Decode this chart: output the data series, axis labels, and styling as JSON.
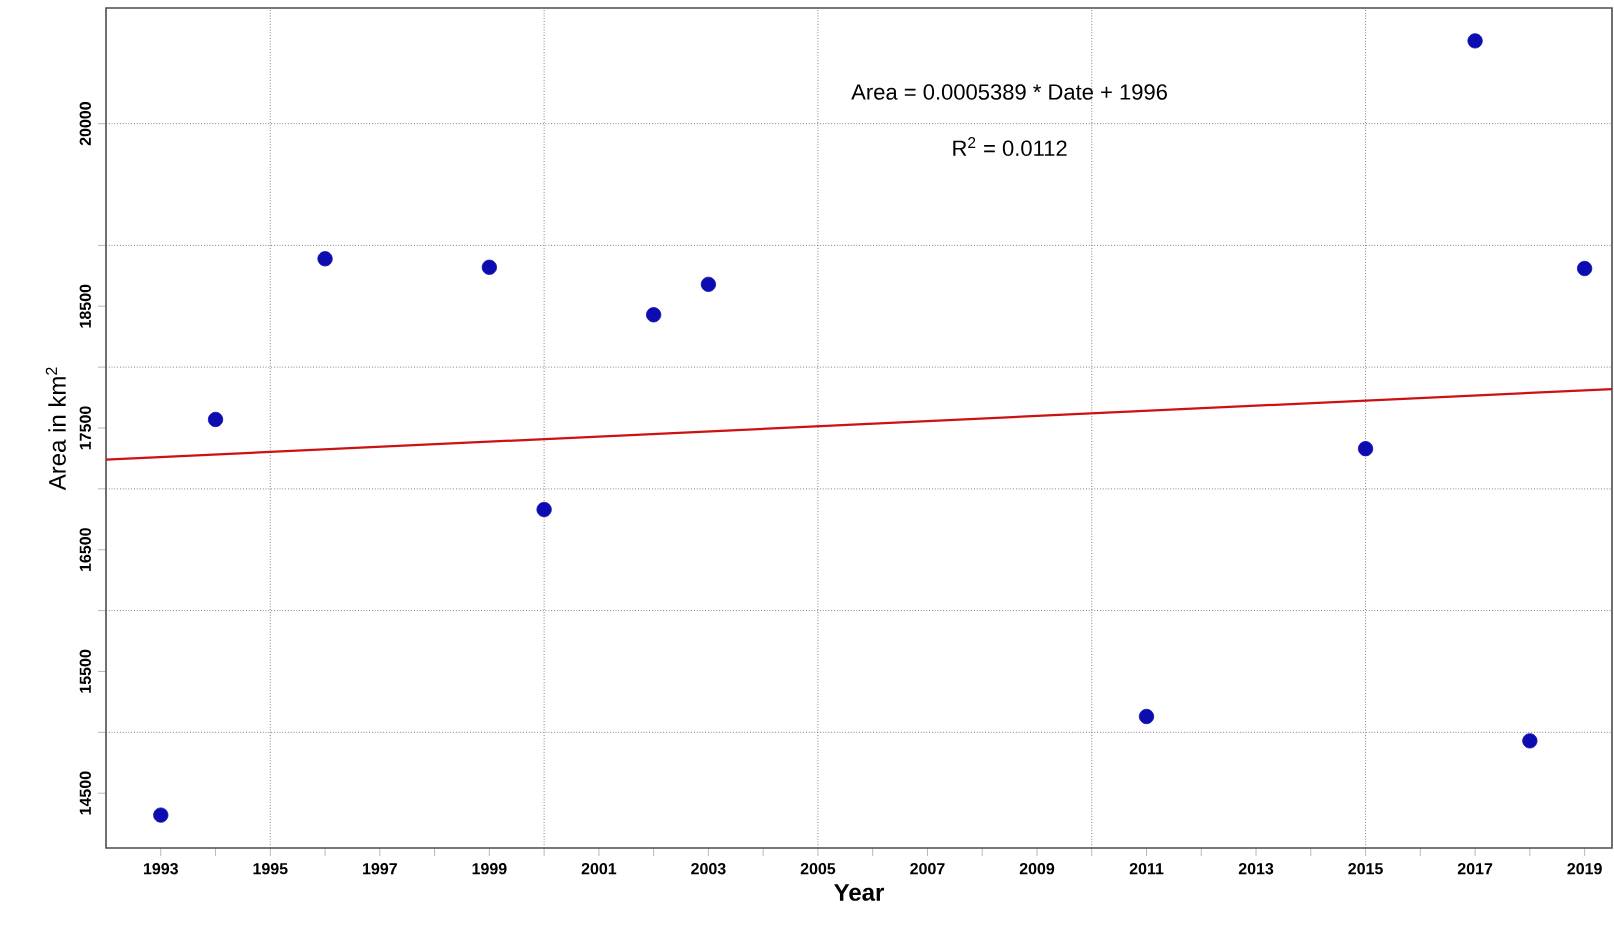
{
  "chart_data": {
    "type": "scatter",
    "xlabel": "Year",
    "ylabel": "Area in km$^{2}$",
    "x": [
      1993,
      1994,
      1996,
      1999,
      2000,
      2002,
      2003,
      2011,
      2015,
      2017,
      2018,
      2019
    ],
    "series": [
      {
        "color": "#0c0cb0",
        "marker": "circle",
        "values": [
          14320,
          17570,
          18890,
          18820,
          16830,
          18430,
          18680,
          15130,
          17330,
          20680,
          14930,
          18810
        ]
      },
      {
        "type": "line",
        "color": "#cc1111",
        "line_style": "solid",
        "marker": "none",
        "x": [
          1992,
          2019.5
        ],
        "values": [
          17240,
          17820
        ]
      }
    ],
    "annotations": [
      "Area = 0.0005389 * Date + 1996",
      "R$^{2}$  = 0.0112"
    ],
    "xlim": [
      1992,
      2019.5
    ],
    "ylim": [
      14050,
      20950
    ],
    "xticks": [
      1993,
      {
        "value": 1994,
        "label": null
      },
      1995,
      {
        "value": 1996,
        "label": null
      },
      1997,
      {
        "value": 1998,
        "label": null
      },
      1999,
      {
        "value": 2000,
        "label": null
      },
      2001,
      {
        "value": 2002,
        "label": null
      },
      2003,
      {
        "value": 2004,
        "label": null
      },
      2005,
      {
        "value": 2006,
        "label": null
      },
      2007,
      {
        "value": 2008,
        "label": null
      },
      2009,
      {
        "value": 2010,
        "label": null
      },
      2011,
      {
        "value": 2012,
        "label": null
      },
      2013,
      {
        "value": 2014,
        "label": null
      },
      2015,
      {
        "value": 2016,
        "label": null
      },
      2017,
      {
        "value": 2018,
        "label": null
      },
      2019
    ],
    "yticks": [
      14500,
      {
        "value": 15000,
        "label": null
      },
      15500,
      {
        "value": 16000,
        "label": null
      },
      16500,
      {
        "value": 17000,
        "label": null
      },
      17500,
      {
        "value": 18000,
        "label": null
      },
      18500,
      {
        "value": 19000,
        "label": null
      },
      20000
    ],
    "grid": true
  }
}
